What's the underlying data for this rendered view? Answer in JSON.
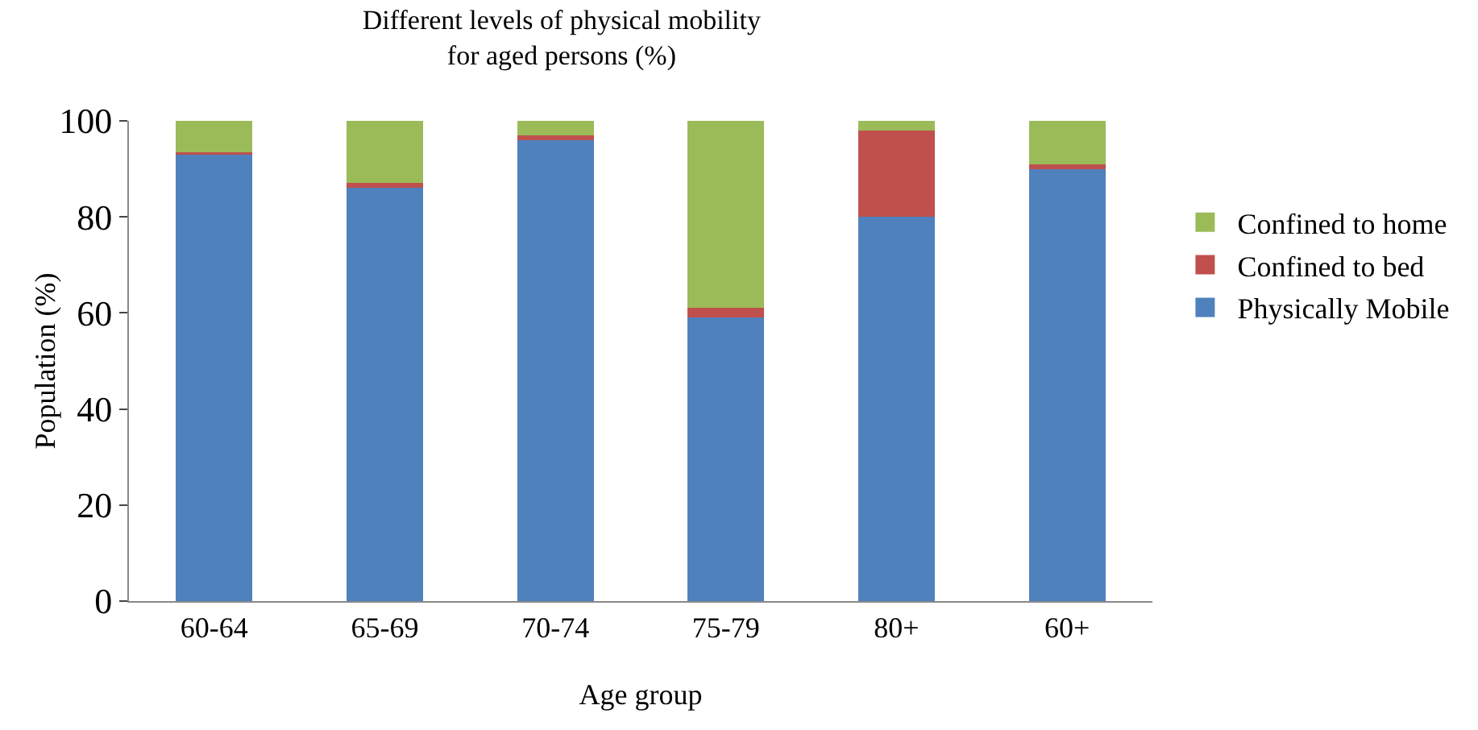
{
  "chart_data": {
    "type": "bar",
    "title": "Different levels of physical mobility\nfor aged persons (%)",
    "xlabel": "Age group",
    "ylabel": "Population (%)",
    "categories": [
      "60-64",
      "65-69",
      "70-74",
      "75-79",
      "80+",
      "60+"
    ],
    "stacked": true,
    "series": [
      {
        "name": "Physically Mobile",
        "color": "#4f81bd",
        "values": [
          93,
          86,
          96,
          59,
          80,
          90
        ]
      },
      {
        "name": "Confined to bed",
        "color": "#c0504d",
        "values": [
          0.5,
          1,
          1,
          2,
          18,
          1
        ]
      },
      {
        "name": "Confined to home",
        "color": "#9bbb59",
        "values": [
          6.5,
          13,
          3,
          39,
          2,
          9
        ]
      }
    ],
    "ylim": [
      0,
      100
    ],
    "yticks": [
      0,
      20,
      40,
      60,
      80,
      100
    ],
    "grid": false,
    "legend": "right"
  }
}
